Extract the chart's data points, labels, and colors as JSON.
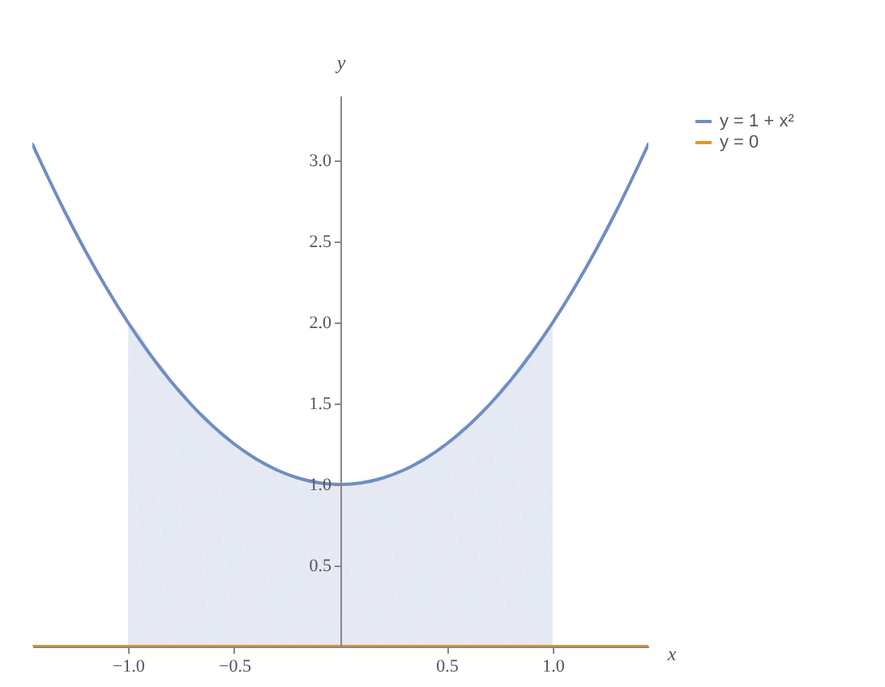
{
  "chart_data": {
    "type": "line",
    "xlabel": "x",
    "ylabel": "y",
    "xlim": [
      -1.45,
      1.45
    ],
    "ylim": [
      0,
      3.4
    ],
    "xticks": [
      {
        "value": -1,
        "label": "−1.0"
      },
      {
        "value": -0.5,
        "label": "−0.5"
      },
      {
        "value": 0.5,
        "label": "0.5"
      },
      {
        "value": 1,
        "label": "1.0"
      }
    ],
    "yticks": [
      {
        "value": 0.5,
        "label": "0.5"
      },
      {
        "value": 1,
        "label": "1.0"
      },
      {
        "value": 1.5,
        "label": "1.5"
      },
      {
        "value": 2,
        "label": "2.0"
      },
      {
        "value": 2.5,
        "label": "2.5"
      },
      {
        "value": 3,
        "label": "3.0"
      }
    ],
    "series": [
      {
        "type": "area",
        "color": "#e5e9f3",
        "x": [
          -1,
          -0.9,
          -0.8,
          -0.7,
          -0.6,
          -0.5,
          -0.4,
          -0.3,
          -0.2,
          -0.1,
          0,
          0.1,
          0.2,
          0.3,
          0.4,
          0.5,
          0.6,
          0.7,
          0.8,
          0.9,
          1
        ],
        "values": [
          2,
          1.81,
          1.64,
          1.49,
          1.36,
          1.25,
          1.16,
          1.09,
          1.04,
          1.01,
          1,
          1.01,
          1.04,
          1.09,
          1.16,
          1.25,
          1.36,
          1.49,
          1.64,
          1.81,
          2
        ]
      },
      {
        "name": "y = 1 + x²",
        "color": "#6f8ec2",
        "x": [
          -1.45,
          -1.4,
          -1.3,
          -1.2,
          -1.1,
          -1,
          -0.9,
          -0.8,
          -0.7,
          -0.6,
          -0.5,
          -0.4,
          -0.3,
          -0.2,
          -0.1,
          0,
          0.1,
          0.2,
          0.3,
          0.4,
          0.5,
          0.6,
          0.7,
          0.8,
          0.9,
          1,
          1.1,
          1.2,
          1.3,
          1.4,
          1.45
        ],
        "values": [
          3.1,
          2.96,
          2.69,
          2.44,
          2.21,
          2,
          1.81,
          1.64,
          1.49,
          1.36,
          1.25,
          1.16,
          1.09,
          1.04,
          1.01,
          1,
          1.01,
          1.04,
          1.09,
          1.16,
          1.25,
          1.36,
          1.49,
          1.64,
          1.81,
          2,
          2.21,
          2.44,
          2.69,
          2.96,
          3.1
        ]
      },
      {
        "name": "y = 0",
        "color": "#e09a2a",
        "x": [
          -1.45,
          1.45
        ],
        "values": [
          0,
          0
        ]
      }
    ],
    "legend": "right",
    "grid": false
  }
}
